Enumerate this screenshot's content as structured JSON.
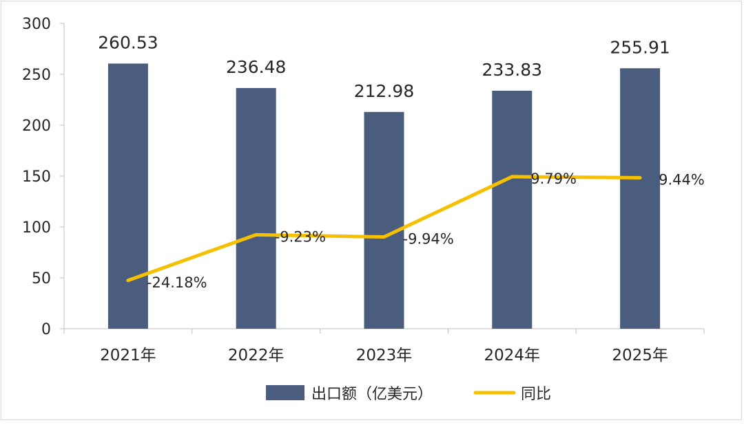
{
  "chart_data": {
    "type": "bar",
    "categories": [
      "2021年",
      "2022年",
      "2023年",
      "2024年",
      "2025年"
    ],
    "series": [
      {
        "name": "出口额（亿美元）",
        "type": "bar",
        "values": [
          260.53,
          236.48,
          212.98,
          233.83,
          255.91
        ],
        "labels": [
          "260.53",
          "236.48",
          "212.98",
          "233.83",
          "255.91"
        ]
      },
      {
        "name": "同比",
        "type": "line",
        "values": [
          -24.18,
          -9.23,
          -9.94,
          9.79,
          9.44
        ],
        "labels": [
          "-24.18%",
          "-9.23%",
          "-9.94%",
          "9.79%",
          "9.44%"
        ]
      }
    ],
    "y_axis": {
      "min": 0,
      "max": 300,
      "ticks": [
        "0",
        "50",
        "100",
        "150",
        "200",
        "250",
        "300"
      ]
    },
    "secondary_axis": {
      "min": -40,
      "max": 60,
      "shown": false
    },
    "legend_position": "bottom",
    "grid": false,
    "colors": {
      "bar": "#4a5d7e",
      "line": "#f5c000"
    }
  }
}
